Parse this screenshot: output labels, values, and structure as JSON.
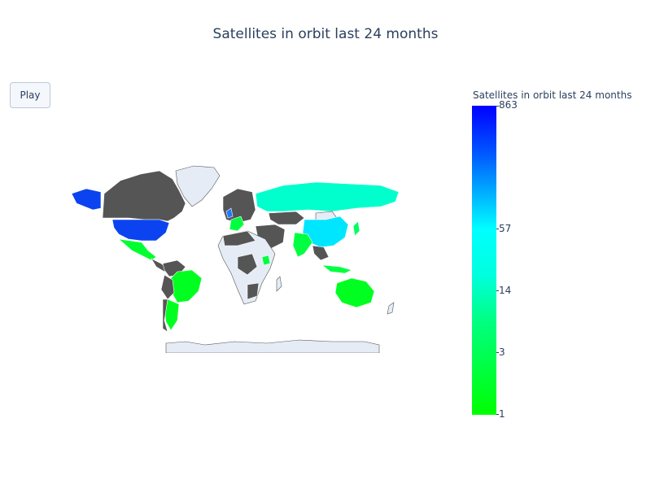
{
  "title": "Satellites in orbit last 24 months",
  "controls": {
    "play_label": "Play"
  },
  "colorbar": {
    "title": "Satellites in orbit last 24 months",
    "colorscale": [
      "#00ff00",
      "#00ff80",
      "#00ffdd",
      "#00ffff",
      "#0055ff",
      "#0000ff"
    ],
    "ticks": [
      {
        "label": "863",
        "value": 863
      },
      {
        "label": "57",
        "value": 57
      },
      {
        "label": "14",
        "value": 14
      },
      {
        "label": "3",
        "value": 3
      },
      {
        "label": "1",
        "value": 1
      }
    ]
  },
  "map": {
    "no_data_color": "#e5ecf6",
    "non_highlight_color": "#555555",
    "border_color": "#ffffff",
    "regions": [
      {
        "name": "United States",
        "color": "#0b43f0"
      },
      {
        "name": "Alaska",
        "color": "#0b43f0"
      },
      {
        "name": "Canada",
        "color": "#555555"
      },
      {
        "name": "Greenland",
        "color": "#e5ecf6"
      },
      {
        "name": "Mexico",
        "color": "#00ff30"
      },
      {
        "name": "Brazil",
        "color": "#00ff20"
      },
      {
        "name": "Argentina",
        "color": "#00ff20"
      },
      {
        "name": "Russia",
        "color": "#00ffcc"
      },
      {
        "name": "China",
        "color": "#00e6ff"
      },
      {
        "name": "India",
        "color": "#00ff40"
      },
      {
        "name": "Australia",
        "color": "#00ff20"
      },
      {
        "name": "United Kingdom",
        "color": "#2277ff"
      },
      {
        "name": "Africa",
        "color": "#e5ecf6"
      },
      {
        "name": "Antarctica",
        "color": "#e5ecf6"
      }
    ]
  }
}
